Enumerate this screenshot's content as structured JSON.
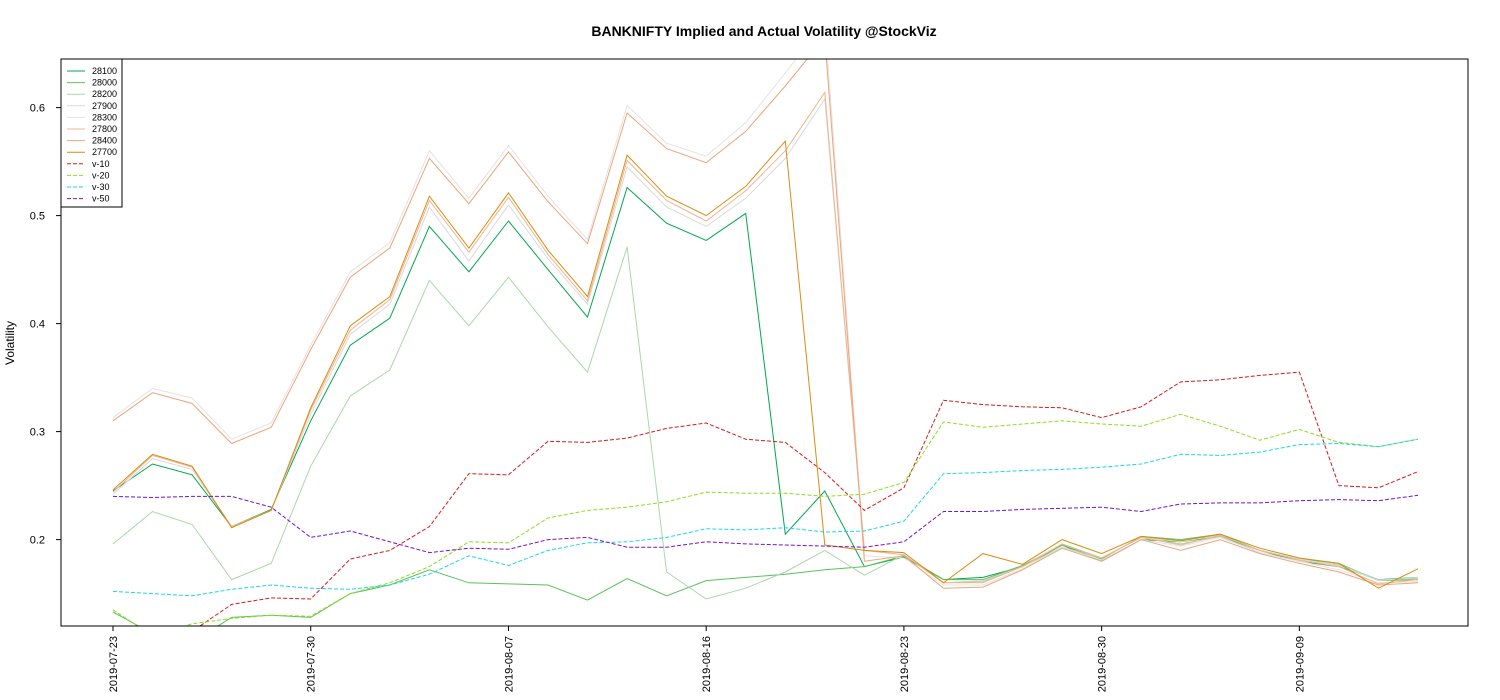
{
  "chart_data": {
    "type": "line",
    "title": "BANKNIFTY Implied and Actual Volatility @StockViz",
    "ylabel": "Volatility",
    "xlabel": "",
    "ylim": [
      0.12,
      0.645
    ],
    "yticks": [
      0.2,
      0.3,
      0.4,
      0.5,
      0.6
    ],
    "ytick_labels": [
      "0.2",
      "0.3",
      "0.4",
      "0.5",
      "0.6"
    ],
    "xtick_labels": [
      {
        "label": "2019-07-23",
        "index": 0
      },
      {
        "label": "2019-07-30",
        "index": 5
      },
      {
        "label": "2019-08-07",
        "index": 10
      },
      {
        "label": "2019-08-16",
        "index": 15
      },
      {
        "label": "2019-08-23",
        "index": 20
      },
      {
        "label": "2019-08-30",
        "index": 25
      },
      {
        "label": "2019-09-09",
        "index": 30
      }
    ],
    "n_points": 34,
    "grid": false,
    "legend_position": "top-left",
    "series": [
      {
        "name": "28100",
        "color": "#00a650",
        "dash": "solid",
        "values": [
          0.245,
          0.27,
          0.26,
          0.212,
          0.228,
          0.31,
          0.38,
          0.405,
          0.49,
          0.448,
          0.495,
          0.45,
          0.406,
          0.526,
          0.493,
          0.477,
          0.502,
          0.205,
          0.245,
          0.175,
          0.184,
          0.163,
          0.165,
          0.175,
          0.195,
          0.18,
          0.2,
          0.198,
          0.203,
          0.19,
          0.18,
          0.175,
          0.163,
          0.165
        ]
      },
      {
        "name": "28000",
        "color": "#5bc25b",
        "dash": "solid",
        "values": [
          0.133,
          0.113,
          0.105,
          0.128,
          0.13,
          0.128,
          0.15,
          0.158,
          0.172,
          0.16,
          0.159,
          0.158,
          0.144,
          0.164,
          0.148,
          0.162,
          0.165,
          0.168,
          0.172,
          0.175,
          0.185,
          0.163,
          0.163,
          0.176,
          0.195,
          0.182,
          0.203,
          0.2,
          0.205,
          0.19,
          0.182,
          0.178,
          0.162,
          0.163
        ]
      },
      {
        "name": "28200",
        "color": "#a9d8a9",
        "dash": "solid",
        "values": [
          0.196,
          0.226,
          0.214,
          0.163,
          0.178,
          0.268,
          0.333,
          0.357,
          0.44,
          0.398,
          0.443,
          0.397,
          0.355,
          0.471,
          0.17,
          0.145,
          0.155,
          0.17,
          0.19,
          0.167,
          0.186,
          0.16,
          0.16,
          0.175,
          0.193,
          0.183,
          0.202,
          0.196,
          0.203,
          0.188,
          0.18,
          0.177,
          0.163,
          0.164
        ]
      },
      {
        "name": "27900",
        "color": "#d9d9d9",
        "dash": "solid",
        "values": [
          0.242,
          0.275,
          0.265,
          0.212,
          0.227,
          0.316,
          0.39,
          0.418,
          0.508,
          0.458,
          0.51,
          0.46,
          0.418,
          0.545,
          0.508,
          0.49,
          0.516,
          0.553,
          0.608,
          0.19,
          0.186,
          0.16,
          0.162,
          0.175,
          0.196,
          0.183,
          0.202,
          0.198,
          0.204,
          0.19,
          0.182,
          0.176,
          0.162,
          0.165
        ]
      },
      {
        "name": "28300",
        "color": "#e8e0e0",
        "dash": "solid",
        "values": [
          0.313,
          0.34,
          0.331,
          0.293,
          0.308,
          0.38,
          0.448,
          0.475,
          0.56,
          0.516,
          0.565,
          0.518,
          0.478,
          0.602,
          0.567,
          0.555,
          0.586,
          0.632,
          0.68,
          0.185,
          0.183,
          0.158,
          0.158,
          0.173,
          0.193,
          0.181,
          0.2,
          0.194,
          0.202,
          0.188,
          0.18,
          0.172,
          0.16,
          0.161
        ]
      },
      {
        "name": "27800",
        "color": "#f2b48c",
        "dash": "solid",
        "values": [
          0.244,
          0.278,
          0.267,
          0.212,
          0.227,
          0.32,
          0.394,
          0.422,
          0.514,
          0.466,
          0.517,
          0.464,
          0.421,
          0.551,
          0.514,
          0.495,
          0.523,
          0.56,
          0.614,
          0.19,
          0.186,
          0.16,
          0.161,
          0.175,
          0.196,
          0.183,
          0.202,
          0.195,
          0.204,
          0.19,
          0.181,
          0.175,
          0.159,
          0.163
        ]
      },
      {
        "name": "28400",
        "color": "#eea47a",
        "dash": "solid",
        "values": [
          0.31,
          0.336,
          0.326,
          0.289,
          0.304,
          0.376,
          0.443,
          0.47,
          0.553,
          0.511,
          0.559,
          0.513,
          0.474,
          0.595,
          0.562,
          0.549,
          0.578,
          0.62,
          0.665,
          0.18,
          0.185,
          0.155,
          0.156,
          0.172,
          0.192,
          0.18,
          0.2,
          0.19,
          0.2,
          0.187,
          0.178,
          0.17,
          0.158,
          0.16
        ]
      },
      {
        "name": "27700",
        "color": "#d98c12",
        "dash": "solid",
        "values": [
          0.246,
          0.279,
          0.268,
          0.211,
          0.227,
          0.322,
          0.398,
          0.425,
          0.518,
          0.47,
          0.521,
          0.468,
          0.425,
          0.556,
          0.518,
          0.5,
          0.527,
          0.569,
          0.195,
          0.19,
          0.188,
          0.16,
          0.187,
          0.177,
          0.2,
          0.187,
          0.203,
          0.199,
          0.205,
          0.192,
          0.183,
          0.178,
          0.155,
          0.173
        ]
      },
      {
        "name": "v-10",
        "color": "#d61a1a",
        "dash": "4,2",
        "values": [
          0.105,
          0.095,
          0.115,
          0.14,
          0.146,
          0.145,
          0.182,
          0.19,
          0.212,
          0.261,
          0.26,
          0.291,
          0.29,
          0.294,
          0.303,
          0.308,
          0.293,
          0.29,
          0.262,
          0.227,
          0.248,
          0.329,
          0.325,
          0.323,
          0.322,
          0.313,
          0.323,
          0.346,
          0.348,
          0.352,
          0.355,
          0.25,
          0.248,
          0.263
        ]
      },
      {
        "name": "v-20",
        "color": "#8fdc1e",
        "dash": "4,2",
        "values": [
          0.135,
          0.111,
          0.122,
          0.127,
          0.13,
          0.129,
          0.15,
          0.16,
          0.175,
          0.198,
          0.197,
          0.22,
          0.227,
          0.23,
          0.235,
          0.244,
          0.243,
          0.243,
          0.24,
          0.242,
          0.253,
          0.309,
          0.304,
          0.307,
          0.31,
          0.307,
          0.305,
          0.316,
          0.305,
          0.292,
          0.302,
          0.29,
          0.286,
          0.293
        ]
      },
      {
        "name": "v-30",
        "color": "#18d8e8",
        "dash": "4,2",
        "values": [
          0.152,
          0.15,
          0.148,
          0.154,
          0.158,
          0.155,
          0.154,
          0.158,
          0.168,
          0.185,
          0.176,
          0.19,
          0.197,
          0.198,
          0.202,
          0.21,
          0.209,
          0.211,
          0.207,
          0.208,
          0.217,
          0.261,
          0.262,
          0.264,
          0.265,
          0.267,
          0.27,
          0.279,
          0.278,
          0.281,
          0.288,
          0.289,
          0.286,
          0.293
        ]
      },
      {
        "name": "v-50",
        "color": "#7a10c8",
        "dash": "4,2",
        "values": [
          0.24,
          0.239,
          0.24,
          0.24,
          0.23,
          0.202,
          0.208,
          0.198,
          0.188,
          0.192,
          0.191,
          0.2,
          0.202,
          0.193,
          0.193,
          0.198,
          0.196,
          0.195,
          0.194,
          0.193,
          0.198,
          0.226,
          0.226,
          0.228,
          0.229,
          0.23,
          0.226,
          0.233,
          0.234,
          0.234,
          0.236,
          0.237,
          0.236,
          0.241
        ]
      }
    ]
  }
}
